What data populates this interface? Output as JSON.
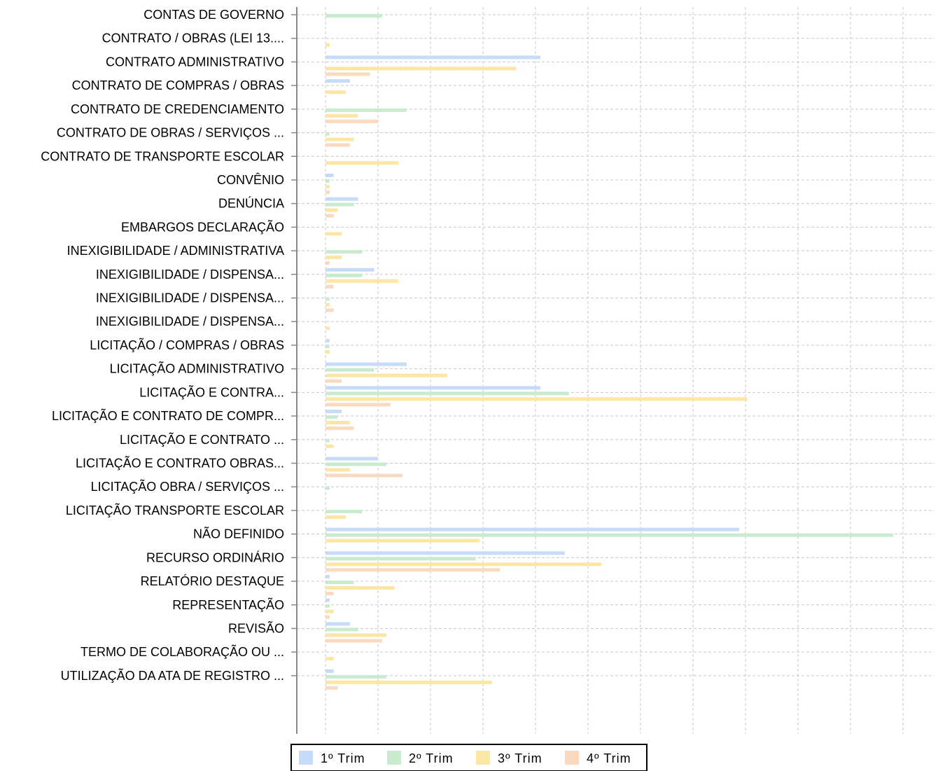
{
  "chart_data": {
    "type": "bar",
    "orientation": "horizontal",
    "categories": [
      "CONTAS DE GOVERNO",
      "CONTRATO / OBRAS (LEI 13....",
      "CONTRATO ADMINISTRATIVO",
      "CONTRATO DE COMPRAS / OBRAS",
      "CONTRATO DE CREDENCIAMENTO",
      "CONTRATO DE OBRAS / SERVIÇOS ...",
      "CONTRATO DE TRANSPORTE ESCOLAR",
      "CONVÊNIO",
      "DENÚNCIA",
      "EMBARGOS DECLARAÇÃO",
      "INEXIGIBILIDADE / ADMINISTRATIVA",
      "INEXIGIBILIDADE / DISPENSA...",
      "INEXIGIBILIDADE / DISPENSA...",
      "INEXIGIBILIDADE / DISPENSA...",
      "LICITAÇÃO / COMPRAS / OBRAS",
      "LICITAÇÃO ADMINISTRATIVO",
      "LICITAÇÃO E CONTRA...",
      "LICITAÇÃO E CONTRATO DE COMPR...",
      "LICITAÇÃO E CONTRATO ...",
      "LICITAÇÃO E CONTRATO OBRAS...",
      "LICITAÇÃO OBRA / SERVIÇOS ...",
      "LICITAÇÃO TRANSPORTE ESCOLAR",
      "NÃO DEFINIDO",
      "RECURSO ORDINÁRIO",
      "RELATÓRIO DESTAQUE",
      "REPRESENTAÇÃO",
      "REVISÃO",
      "TERMO DE COLABORAÇÃO OU ...",
      "UTILIZAÇÃO DA ATA DE REGISTRO ..."
    ],
    "series": [
      {
        "name": "1º Trim",
        "color": "#c6dbf7",
        "values": [
          0,
          0,
          53,
          6,
          0,
          0,
          0,
          2,
          8,
          0,
          0,
          12,
          0,
          0,
          1,
          20,
          53,
          4,
          0,
          13,
          0,
          0,
          102,
          59,
          1,
          1,
          6,
          0,
          2
        ]
      },
      {
        "name": "2º Trim",
        "color": "#c8ebcf",
        "values": [
          14,
          0,
          0,
          0,
          20,
          1,
          0,
          1,
          7,
          0,
          9,
          9,
          1,
          0,
          1,
          12,
          60,
          3,
          1,
          15,
          1,
          9,
          140,
          37,
          7,
          1,
          8,
          0,
          15
        ]
      },
      {
        "name": "3º Trim",
        "color": "#fbe6a3",
        "values": [
          0,
          1,
          47,
          5,
          8,
          7,
          18,
          1,
          3,
          4,
          4,
          18,
          1,
          1,
          1,
          30,
          104,
          6,
          2,
          6,
          0,
          5,
          38,
          68,
          17,
          2,
          15,
          2,
          41
        ]
      },
      {
        "name": "4º Trim",
        "color": "#fbd9bf",
        "values": [
          0,
          0,
          11,
          0,
          13,
          6,
          0,
          1,
          2,
          0,
          1,
          2,
          2,
          0,
          0,
          4,
          16,
          7,
          0,
          19,
          0,
          0,
          0,
          43,
          2,
          1,
          14,
          0,
          3
        ]
      }
    ],
    "xlim": [
      0,
      145
    ],
    "grid": true,
    "legend": "bottom-center"
  }
}
